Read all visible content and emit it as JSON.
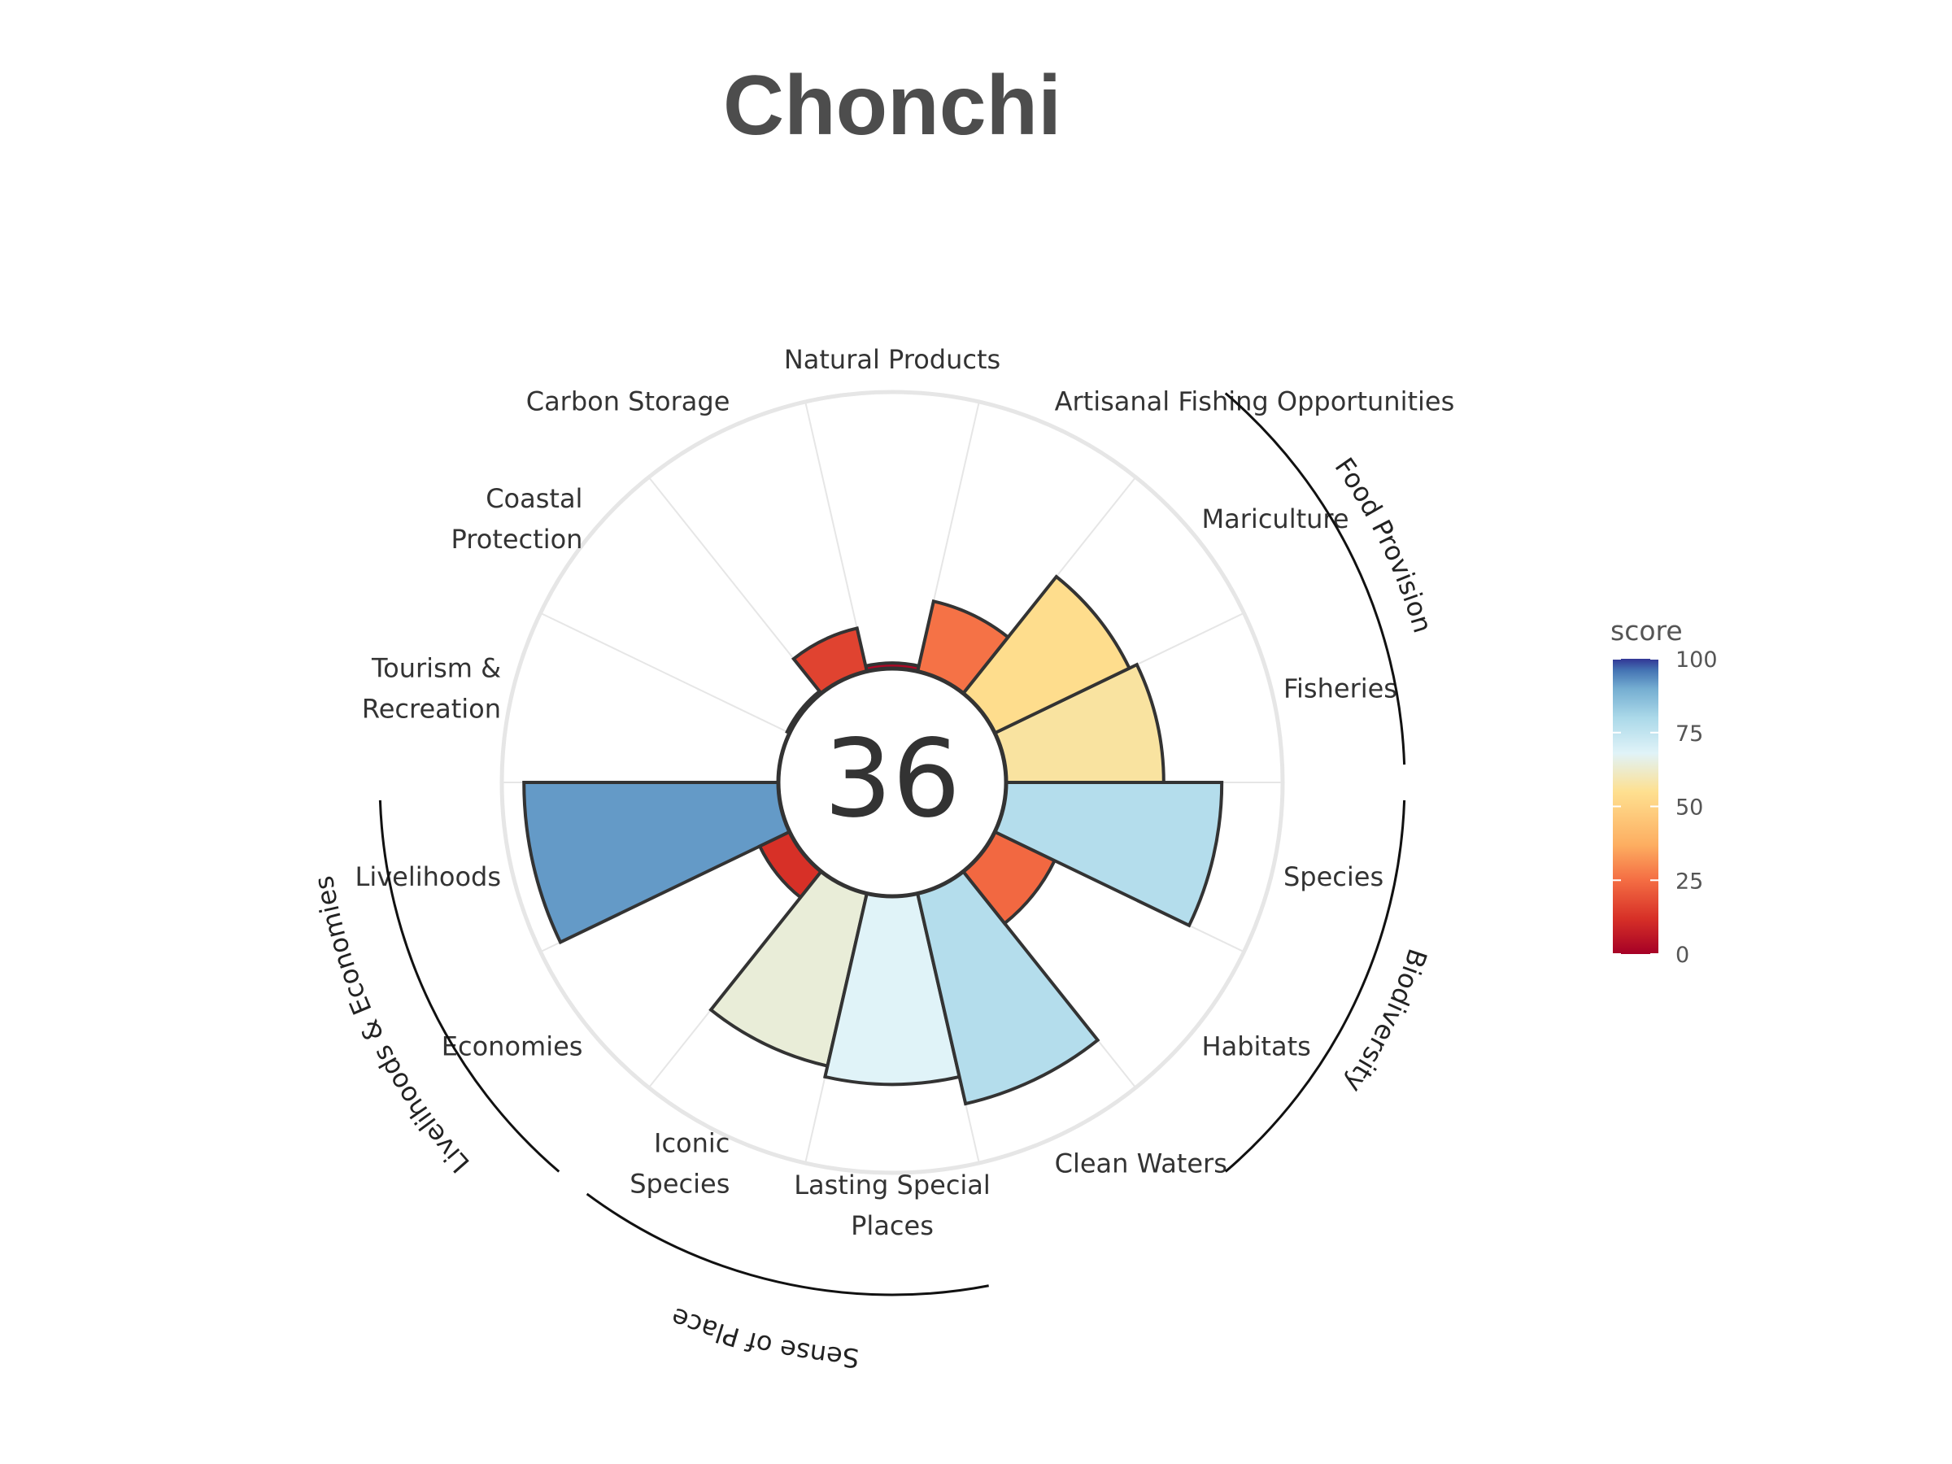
{
  "chart_data": {
    "type": "polar-bar",
    "title": "Chonchi",
    "center_score": "36",
    "ylim": [
      0,
      100
    ],
    "categories": [
      "Fisheries",
      "Mariculture",
      "Artisanal Fishing Opportunities",
      "Natural Products",
      "Carbon Storage",
      "Coastal Protection",
      "Tourism & Recreation",
      "Livelihoods",
      "Economies",
      "Iconic Species",
      "Lasting Special Places",
      "Clean Waters",
      "Habitats",
      "Species"
    ],
    "display_labels": [
      [
        "Fisheries"
      ],
      [
        "Mariculture"
      ],
      [
        "Artisanal Fishing Opportunities"
      ],
      [
        "Natural Products"
      ],
      [
        "Carbon Storage"
      ],
      [
        "Coastal",
        "Protection"
      ],
      [
        "Tourism &",
        "Recreation"
      ],
      [
        "Livelihoods"
      ],
      [
        "Economies"
      ],
      [
        "Iconic",
        "Species"
      ],
      [
        "Lasting Special",
        "Places"
      ],
      [
        "Clean Waters"
      ],
      [
        "Habitats"
      ],
      [
        "Species"
      ]
    ],
    "values": [
      57,
      54,
      26,
      2,
      16,
      1,
      0,
      92,
      12,
      64,
      68,
      78,
      24,
      78
    ],
    "groups": [
      {
        "name": "Food Provision",
        "members": [
          "Fisheries",
          "Mariculture"
        ]
      },
      {
        "name": "Biodiversity",
        "members": [
          "Habitats",
          "Species"
        ]
      },
      {
        "name": "Sense of Place",
        "members": [
          "Iconic Species",
          "Lasting Special Places"
        ]
      },
      {
        "name": "Livelihoods & Economies",
        "members": [
          "Livelihoods",
          "Economies"
        ]
      }
    ],
    "legend": {
      "title": "score",
      "ticks": [
        "0",
        "25",
        "50",
        "75",
        "100"
      ],
      "tick_values": [
        0,
        25,
        50,
        75,
        100
      ],
      "placement": "right"
    },
    "colorscale": [
      [
        0,
        "#a50026"
      ],
      [
        12,
        "#d73027"
      ],
      [
        25,
        "#f46d43"
      ],
      [
        37,
        "#fdae61"
      ],
      [
        55,
        "#fee090"
      ],
      [
        68,
        "#e0f3f8"
      ],
      [
        80,
        "#abd9e9"
      ],
      [
        90,
        "#74add1"
      ],
      [
        96,
        "#4575b4"
      ],
      [
        100,
        "#313695"
      ]
    ]
  }
}
